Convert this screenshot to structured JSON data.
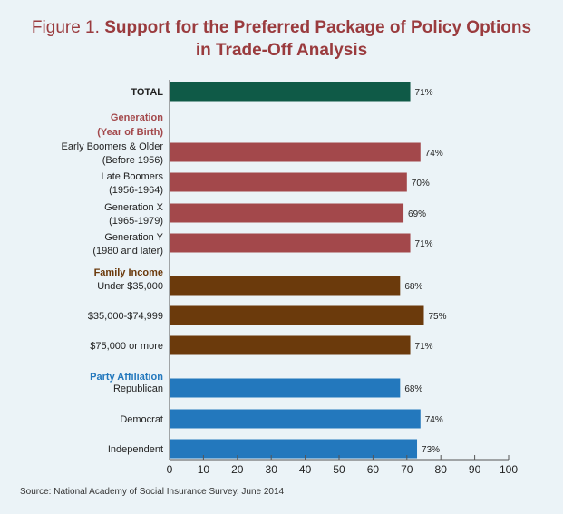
{
  "figure": {
    "prefix": "Figure 1.",
    "title_line1": "Support for the Preferred Package of Policy Options",
    "title_line2": "in Trade-Off Analysis"
  },
  "source": "Source: National Academy of Social Insurance Survey, June 2014",
  "colors": {
    "total": "#0f5a47",
    "generation": "#a3484b",
    "income": "#6b3a0c",
    "party": "#2378bd",
    "group_generation": "#a3484b",
    "group_income": "#6b3a0c",
    "group_party": "#2378bd"
  },
  "chart_data": {
    "type": "bar",
    "orientation": "horizontal",
    "title": "Support for the Preferred Package of Policy Options in Trade-Off Analysis",
    "xlim": [
      0,
      100
    ],
    "xticks": [
      0,
      10,
      20,
      30,
      40,
      50,
      60,
      70,
      80,
      90,
      100
    ],
    "value_suffix": "%",
    "groups": [
      {
        "name": "Generation",
        "name2": "(Year of Birth)",
        "color_key": "group_generation"
      },
      {
        "name": "Family Income",
        "name2": "",
        "color_key": "group_income"
      },
      {
        "name": "Party Affiliation",
        "name2": "",
        "color_key": "group_party"
      }
    ],
    "bars": [
      {
        "label": "TOTAL",
        "label2": "",
        "value": 71,
        "series": "total",
        "bold": true
      },
      {
        "label": "Early Boomers & Older",
        "label2": "(Before 1956)",
        "value": 74,
        "series": "generation"
      },
      {
        "label": "Late Boomers",
        "label2": "(1956-1964)",
        "value": 70,
        "series": "generation"
      },
      {
        "label": "Generation X",
        "label2": "(1965-1979)",
        "value": 69,
        "series": "generation"
      },
      {
        "label": "Generation Y",
        "label2": "(1980 and later)",
        "value": 71,
        "series": "generation"
      },
      {
        "label": "Under $35,000",
        "label2": "",
        "value": 68,
        "series": "income"
      },
      {
        "label": "$35,000-$74,999",
        "label2": "",
        "value": 75,
        "series": "income"
      },
      {
        "label": "$75,000 or more",
        "label2": "",
        "value": 71,
        "series": "income"
      },
      {
        "label": "Republican",
        "label2": "",
        "value": 68,
        "series": "party"
      },
      {
        "label": "Democrat",
        "label2": "",
        "value": 74,
        "series": "party"
      },
      {
        "label": "Independent",
        "label2": "",
        "value": 73,
        "series": "party"
      }
    ]
  }
}
